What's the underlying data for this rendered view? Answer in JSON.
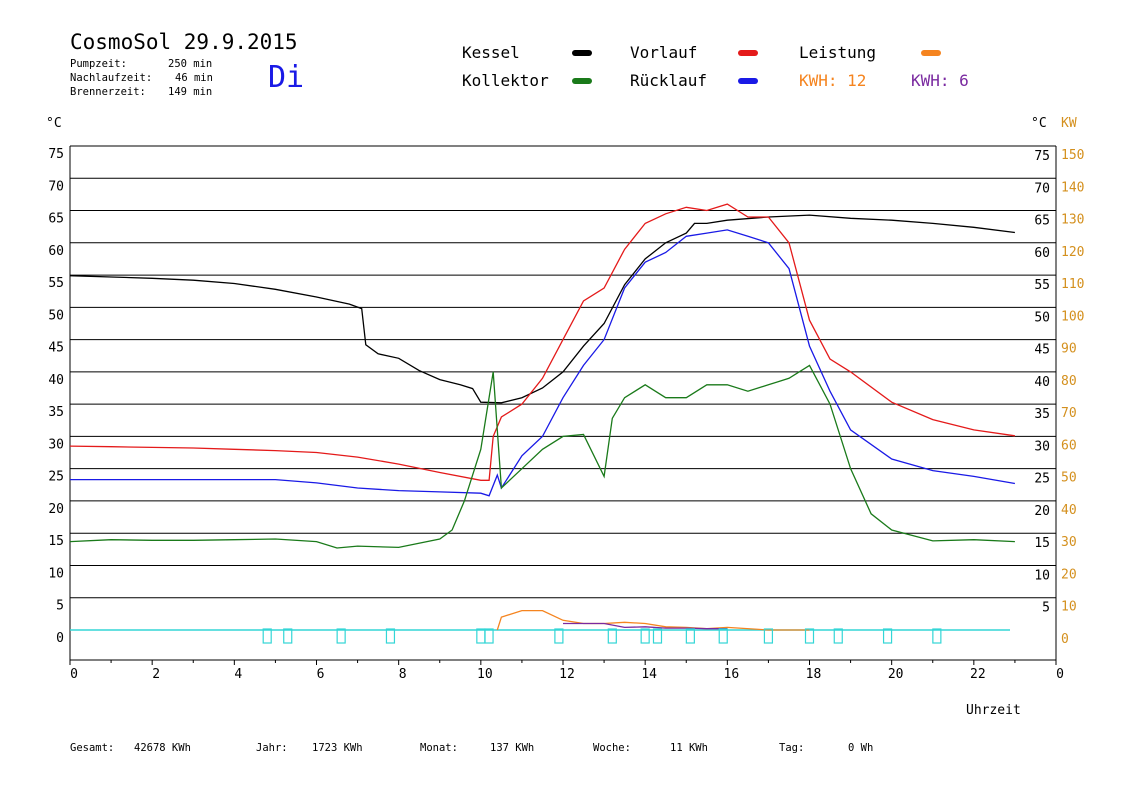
{
  "header": {
    "title": "CosmoSol 29.9.2015",
    "day": "Di",
    "pumpzeit_label": "Pumpzeit:",
    "pumpzeit_value": "250 min",
    "nachlauf_label": "Nachlaufzeit:",
    "nachlauf_value": "46 min",
    "brenner_label": "Brennerzeit:",
    "brenner_value": "149 min"
  },
  "legend": {
    "kessel": "Kessel",
    "vorlauf": "Vorlauf",
    "leistung": "Leistung",
    "kollektor": "Kollektor",
    "ruecklauf": "Rücklauf",
    "kwh_a": "KWH: 12",
    "kwh_b": "KWH: 6"
  },
  "colors": {
    "kessel": "#000000",
    "vorlauf": "#e41a1a",
    "ruecklauf": "#1a1ae6",
    "kollektor": "#1a7a1a",
    "leistung": "#f5841f",
    "kwh_b": "#7a2aa0",
    "pump": "#33d6d6",
    "axis_right2": "#d4901e",
    "day": "#1a1ae6"
  },
  "footer": {
    "gesamt_label": "Gesamt:",
    "gesamt_value": "42678 KWh",
    "jahr_label": "Jahr:",
    "jahr_value": "1723 KWh",
    "monat_label": "Monat:",
    "monat_value": "137 KWh",
    "woche_label": "Woche:",
    "woche_value": "11 KWh",
    "tag_label": "Tag:",
    "tag_value": "0 Wh"
  },
  "chart_data": {
    "type": "line",
    "xlabel": "Uhrzeit",
    "ylabel_left": "°C",
    "ylabel_right": "°C",
    "ylabel_right2": "KW",
    "xlim": [
      0,
      24
    ],
    "ylim": [
      0,
      75
    ],
    "grid": true,
    "x_ticks": [
      "0",
      "2",
      "4",
      "6",
      "8",
      "10",
      "12",
      "14",
      "16",
      "18",
      "20",
      "22",
      "0"
    ],
    "y_ticks_left": [
      "0",
      "5",
      "10",
      "15",
      "20",
      "25",
      "30",
      "35",
      "40",
      "45",
      "50",
      "55",
      "60",
      "65",
      "70",
      "75"
    ],
    "y_ticks_right": [
      "5",
      "10",
      "15",
      "20",
      "25",
      "30",
      "35",
      "40",
      "45",
      "50",
      "55",
      "60",
      "65",
      "70",
      "75"
    ],
    "y_ticks_right2": [
      "0",
      "10",
      "20",
      "30",
      "40",
      "50",
      "60",
      "70",
      "80",
      "90",
      "100",
      "110",
      "120",
      "130",
      "140",
      "150"
    ],
    "series": [
      {
        "name": "Kessel",
        "color": "#000000",
        "points": [
          [
            0,
            54.9
          ],
          [
            1,
            54.7
          ],
          [
            2,
            54.5
          ],
          [
            3,
            54.2
          ],
          [
            4,
            53.7
          ],
          [
            5,
            52.8
          ],
          [
            6,
            51.6
          ],
          [
            6.8,
            50.5
          ],
          [
            7.1,
            49.8
          ],
          [
            7.2,
            44.2
          ],
          [
            7.5,
            42.8
          ],
          [
            8,
            42.1
          ],
          [
            8.5,
            40.2
          ],
          [
            9,
            38.8
          ],
          [
            9.5,
            38
          ],
          [
            9.8,
            37.4
          ],
          [
            10,
            35.3
          ],
          [
            10.5,
            35.2
          ],
          [
            11,
            36
          ],
          [
            11.5,
            37.5
          ],
          [
            12,
            40
          ],
          [
            12.5,
            44
          ],
          [
            13,
            47.5
          ],
          [
            13.5,
            53.5
          ],
          [
            14,
            57.5
          ],
          [
            14.5,
            60
          ],
          [
            15,
            61.5
          ],
          [
            15.2,
            63
          ],
          [
            15.5,
            63
          ],
          [
            16,
            63.5
          ],
          [
            17,
            64
          ],
          [
            18,
            64.3
          ],
          [
            19,
            63.8
          ],
          [
            20,
            63.5
          ],
          [
            21,
            63
          ],
          [
            22,
            62.4
          ],
          [
            23,
            61.6
          ]
        ]
      },
      {
        "name": "Vorlauf",
        "color": "#e41a1a",
        "points": [
          [
            0,
            28.5
          ],
          [
            1,
            28.4
          ],
          [
            2,
            28.3
          ],
          [
            3,
            28.2
          ],
          [
            4,
            28
          ],
          [
            5,
            27.8
          ],
          [
            6,
            27.5
          ],
          [
            7,
            26.8
          ],
          [
            8,
            25.7
          ],
          [
            9,
            24.4
          ],
          [
            10,
            23.2
          ],
          [
            10.2,
            23.2
          ],
          [
            10.3,
            30
          ],
          [
            10.5,
            33
          ],
          [
            11,
            35
          ],
          [
            11.5,
            39
          ],
          [
            12,
            45
          ],
          [
            12.5,
            51
          ],
          [
            13,
            53
          ],
          [
            13.5,
            59
          ],
          [
            14,
            63
          ],
          [
            14.5,
            64.5
          ],
          [
            15,
            65.5
          ],
          [
            15.5,
            65
          ],
          [
            16,
            66
          ],
          [
            16.5,
            64
          ],
          [
            17,
            64
          ],
          [
            17.5,
            60
          ],
          [
            18,
            48
          ],
          [
            18.5,
            42
          ],
          [
            19,
            40
          ],
          [
            20,
            35.3
          ],
          [
            21,
            32.6
          ],
          [
            22,
            31
          ],
          [
            23,
            30.1
          ]
        ]
      },
      {
        "name": "Rücklauf",
        "color": "#1a1ae6",
        "points": [
          [
            0,
            23.3
          ],
          [
            1,
            23.3
          ],
          [
            2,
            23.3
          ],
          [
            3,
            23.3
          ],
          [
            4,
            23.3
          ],
          [
            5,
            23.3
          ],
          [
            6,
            22.8
          ],
          [
            7,
            22
          ],
          [
            8,
            21.6
          ],
          [
            9,
            21.4
          ],
          [
            10,
            21.2
          ],
          [
            10.2,
            20.8
          ],
          [
            10.4,
            24
          ],
          [
            10.5,
            22
          ],
          [
            11,
            27
          ],
          [
            11.5,
            30
          ],
          [
            12,
            36
          ],
          [
            12.5,
            41
          ],
          [
            13,
            45
          ],
          [
            13.5,
            53
          ],
          [
            14,
            57
          ],
          [
            14.5,
            58.5
          ],
          [
            15,
            61
          ],
          [
            15.5,
            61.5
          ],
          [
            16,
            62
          ],
          [
            16.5,
            61
          ],
          [
            17,
            60
          ],
          [
            17.5,
            56
          ],
          [
            18,
            44
          ],
          [
            18.5,
            37
          ],
          [
            19,
            31
          ],
          [
            20,
            26.5
          ],
          [
            21,
            24.7
          ],
          [
            22,
            23.8
          ],
          [
            23,
            22.7
          ]
        ]
      },
      {
        "name": "Kollektor",
        "color": "#1a7a1a",
        "points": [
          [
            0,
            13.7
          ],
          [
            1,
            14
          ],
          [
            2,
            13.9
          ],
          [
            3,
            13.9
          ],
          [
            4,
            14
          ],
          [
            5,
            14.1
          ],
          [
            6,
            13.7
          ],
          [
            6.5,
            12.7
          ],
          [
            7,
            13
          ],
          [
            8,
            12.8
          ],
          [
            9,
            14.1
          ],
          [
            9.3,
            15.5
          ],
          [
            9.6,
            20
          ],
          [
            10,
            28
          ],
          [
            10.3,
            40
          ],
          [
            10.5,
            22
          ],
          [
            11,
            25
          ],
          [
            11.5,
            28
          ],
          [
            12,
            30
          ],
          [
            12.5,
            30.3
          ],
          [
            13,
            23.8
          ],
          [
            13.2,
            32.8
          ],
          [
            13.5,
            36
          ],
          [
            14,
            38
          ],
          [
            14.5,
            36
          ],
          [
            15,
            36
          ],
          [
            15.5,
            38
          ],
          [
            16,
            38
          ],
          [
            16.5,
            37
          ],
          [
            17,
            38
          ],
          [
            17.5,
            39
          ],
          [
            18,
            41
          ],
          [
            18.5,
            35
          ],
          [
            19,
            25
          ],
          [
            19.5,
            18
          ],
          [
            20,
            15.5
          ],
          [
            21,
            13.8
          ],
          [
            22,
            14
          ],
          [
            23,
            13.7
          ]
        ]
      },
      {
        "name": "Leistung",
        "color": "#f5841f",
        "points": [
          [
            10.4,
            0
          ],
          [
            10.5,
            2
          ],
          [
            11,
            3
          ],
          [
            11.5,
            3
          ],
          [
            12,
            1.5
          ],
          [
            12.5,
            1
          ],
          [
            13,
            1
          ],
          [
            13.5,
            1.2
          ],
          [
            14,
            1
          ],
          [
            14.5,
            0.5
          ],
          [
            15,
            0.4
          ],
          [
            15.5,
            0.2
          ],
          [
            16,
            0.4
          ],
          [
            17,
            0
          ],
          [
            18,
            0
          ]
        ]
      },
      {
        "name": "KWH 6",
        "color": "#7a2aa0",
        "points": [
          [
            12,
            1
          ],
          [
            12.5,
            1
          ],
          [
            13,
            1
          ],
          [
            13.5,
            0.4
          ],
          [
            14,
            0.5
          ],
          [
            14.5,
            0.3
          ],
          [
            15,
            0.3
          ],
          [
            15.5,
            0.2
          ],
          [
            16,
            0.2
          ]
        ]
      }
    ],
    "pump_markers_x": [
      4.8,
      5.3,
      6.6,
      7.8,
      10.0,
      10.2,
      11.9,
      13.2,
      14.0,
      14.3,
      15.1,
      15.9,
      17.0,
      18.0,
      18.7,
      19.9,
      21.1
    ]
  }
}
